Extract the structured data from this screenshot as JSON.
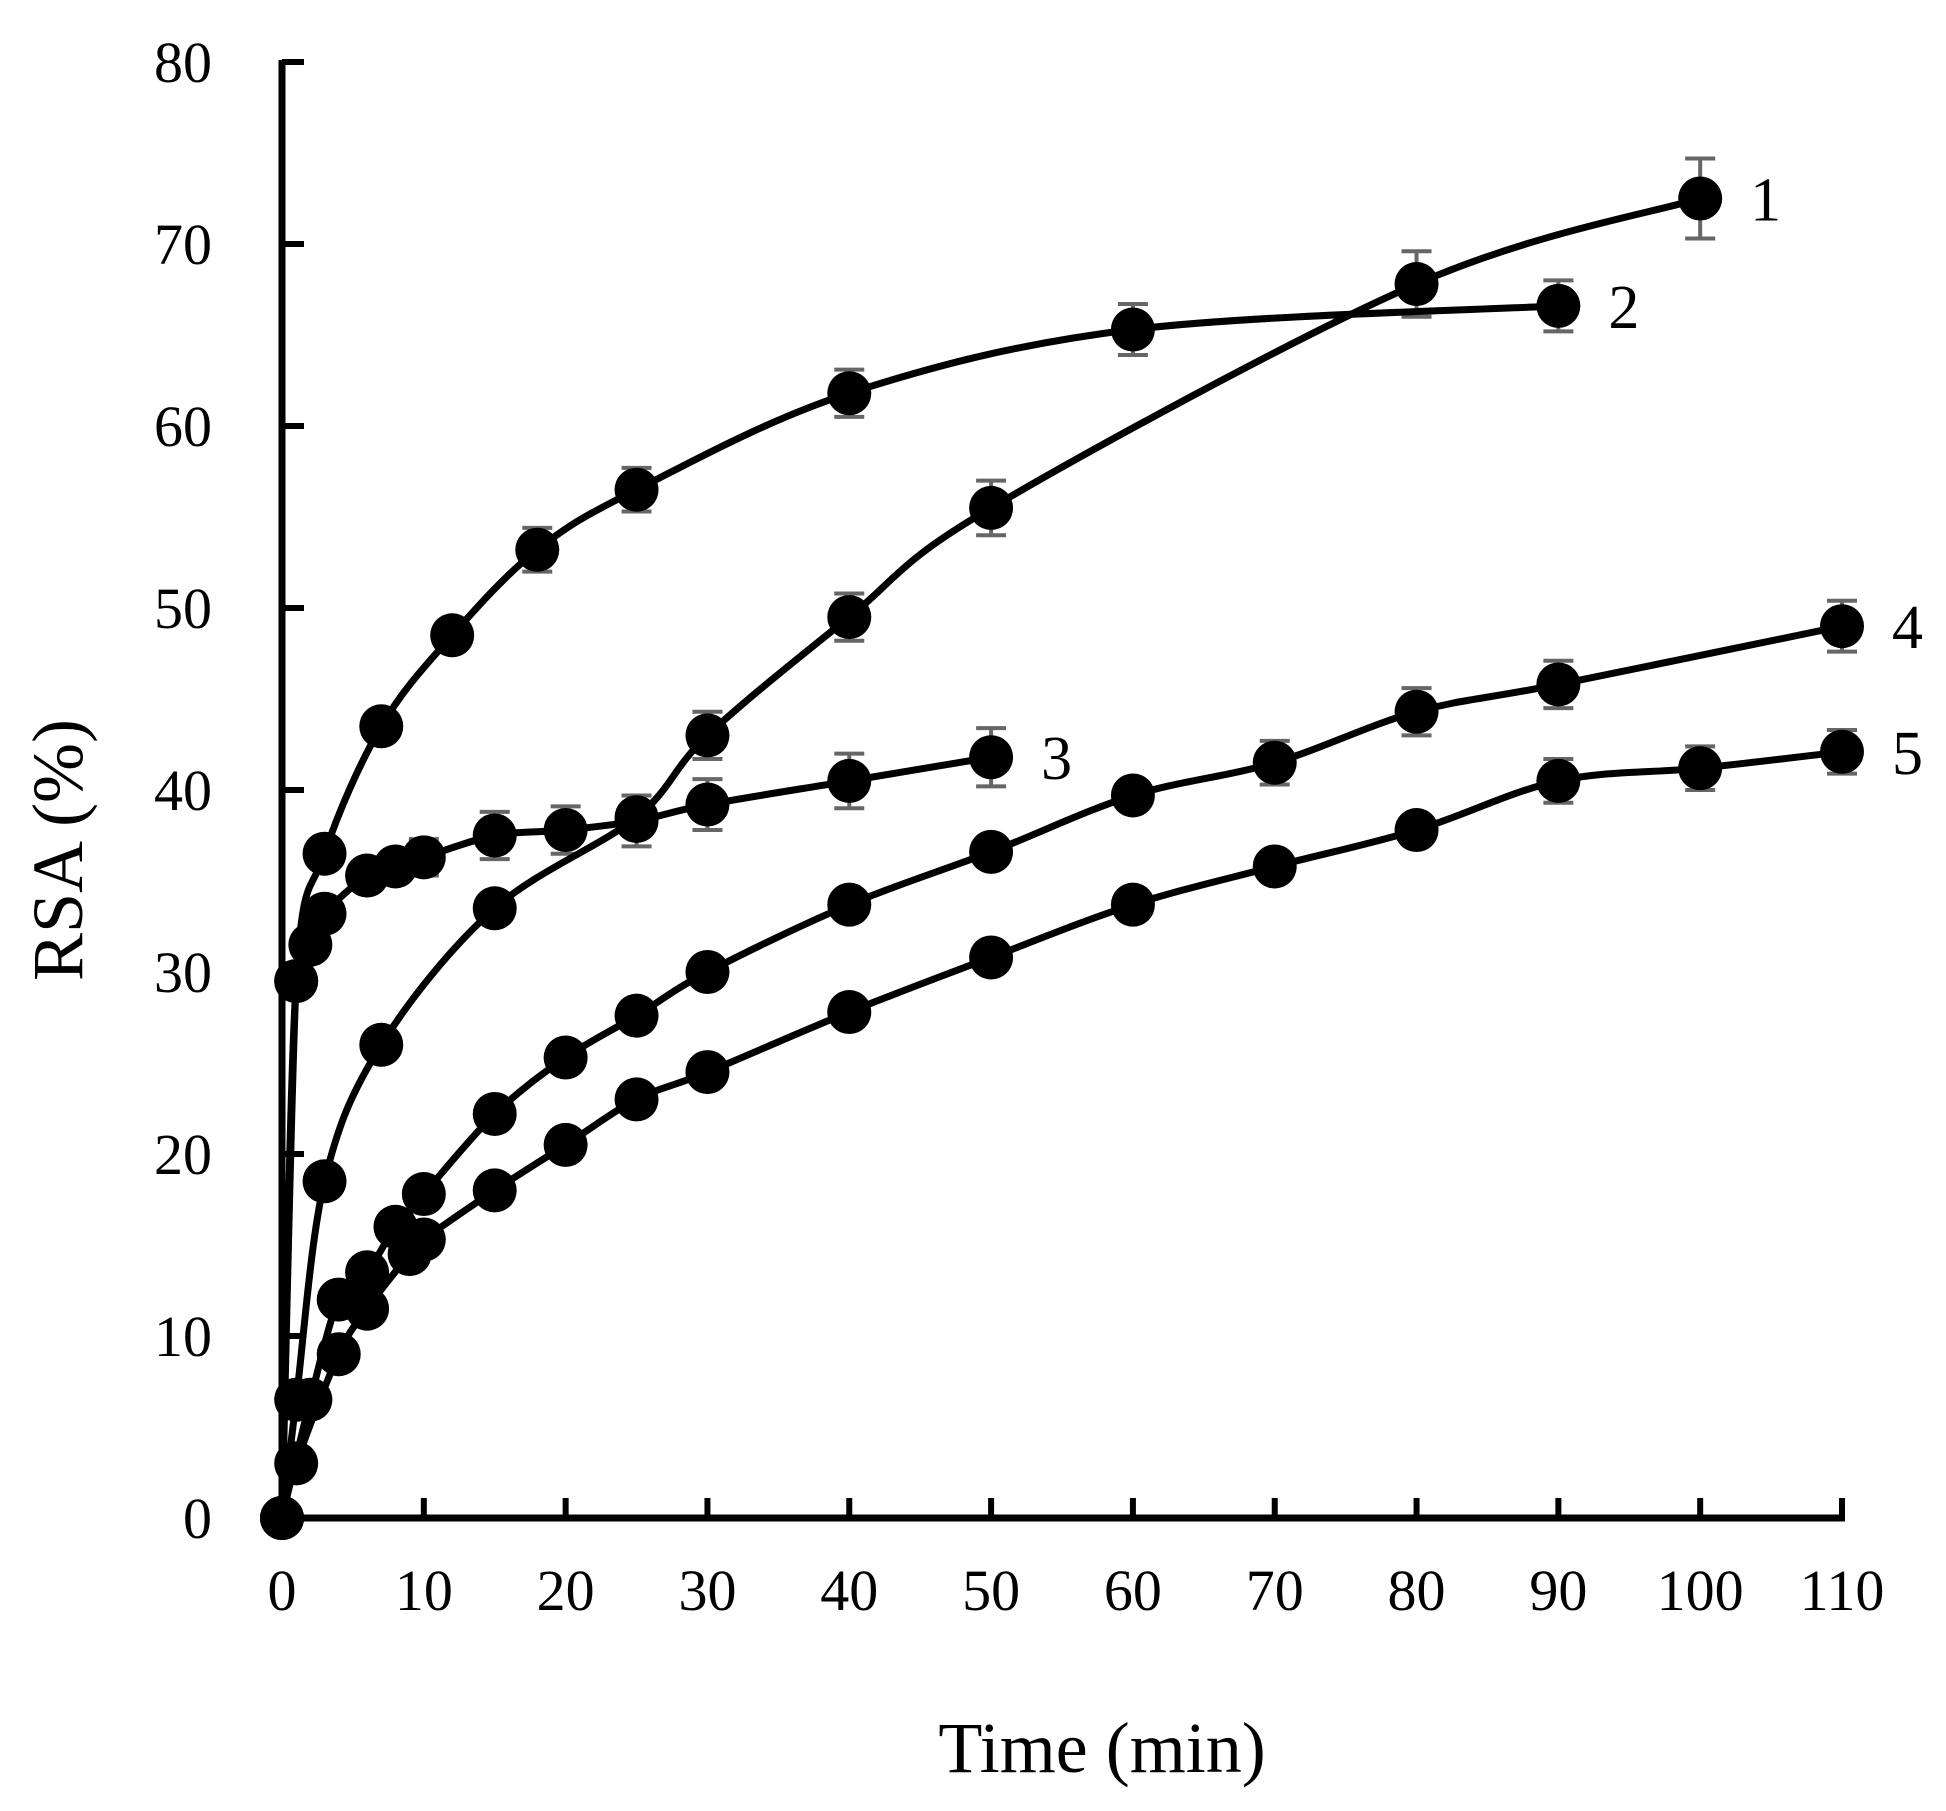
{
  "chart_data": {
    "type": "line",
    "title": "",
    "xlabel": "Time (min)",
    "ylabel": "RSA (%)",
    "xlim": [
      0,
      110
    ],
    "ylim": [
      0,
      80
    ],
    "xticks": [
      0,
      10,
      20,
      30,
      40,
      50,
      60,
      70,
      80,
      90,
      100,
      110
    ],
    "yticks": [
      0,
      10,
      20,
      30,
      40,
      50,
      60,
      70,
      80
    ],
    "grid": false,
    "series": [
      {
        "name": "1",
        "x": [
          0,
          1,
          3,
          7,
          15,
          25,
          30,
          40,
          50,
          80,
          100
        ],
        "y": [
          0,
          6.5,
          18.5,
          26,
          33.5,
          38.5,
          43,
          49.5,
          55.5,
          67.8,
          72.5
        ],
        "err": [
          0,
          0,
          0,
          0,
          0,
          0,
          1.3,
          1.3,
          1.5,
          1.8,
          2.2
        ]
      },
      {
        "name": "2",
        "x": [
          0,
          1,
          3,
          7,
          12,
          18,
          25,
          40,
          60,
          90
        ],
        "y": [
          0,
          29.5,
          36.5,
          43.5,
          48.5,
          53.2,
          56.5,
          61.8,
          65.3,
          66.6
        ],
        "err": [
          0,
          0,
          0,
          0,
          0,
          1.2,
          1.2,
          1.3,
          1.4,
          1.4
        ]
      },
      {
        "name": "3",
        "x": [
          0,
          1,
          2,
          3,
          6,
          8,
          10,
          15,
          20,
          25,
          30,
          40,
          50
        ],
        "y": [
          0,
          29.5,
          31.5,
          33.2,
          35.3,
          35.8,
          36.3,
          37.5,
          37.8,
          38.3,
          39.2,
          40.5,
          41.8
        ],
        "err": [
          0,
          0,
          0,
          0,
          0,
          0,
          1.0,
          1.3,
          1.3,
          1.4,
          1.4,
          1.5,
          1.6
        ]
      },
      {
        "name": "4",
        "x": [
          0,
          2,
          4,
          6,
          8,
          10,
          15,
          20,
          25,
          30,
          40,
          50,
          60,
          70,
          80,
          90,
          110
        ],
        "y": [
          0,
          6.5,
          12,
          13.5,
          16,
          17.8,
          22.2,
          25.3,
          27.6,
          30,
          33.7,
          36.6,
          39.7,
          41.5,
          44.3,
          45.8,
          49
        ],
        "err": [
          0,
          0,
          0,
          0,
          0,
          0,
          0,
          0,
          0,
          0,
          0,
          0,
          0,
          1.2,
          1.3,
          1.3,
          1.4
        ]
      },
      {
        "name": "5",
        "x": [
          0,
          1,
          4,
          6,
          9,
          10,
          15,
          20,
          25,
          30,
          40,
          50,
          60,
          70,
          80,
          90,
          100,
          110
        ],
        "y": [
          0,
          3,
          9,
          11.5,
          14.5,
          15.3,
          18,
          20.5,
          23,
          24.5,
          27.8,
          30.8,
          33.7,
          35.8,
          37.8,
          40.5,
          41.2,
          42.1
        ],
        "err": [
          0,
          0,
          0,
          0,
          0,
          0,
          0,
          0,
          0,
          0,
          0,
          0,
          0,
          0,
          0,
          1.2,
          1.2,
          1.2
        ]
      }
    ]
  }
}
